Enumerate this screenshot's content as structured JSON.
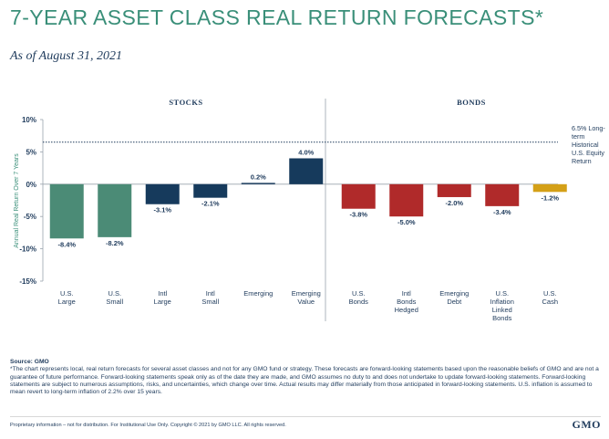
{
  "header": {
    "title": "7-YEAR ASSET CLASS REAL RETURN FORECASTS*",
    "subtitle": "As of August 31, 2021"
  },
  "colors": {
    "title": "#3a8f79",
    "navy": "#1f3b5c",
    "us_equity": "#4b8b76",
    "intl_equity": "#163a5c",
    "bonds": "#b02a2a",
    "cash": "#d4a017"
  },
  "chart_data": {
    "type": "bar",
    "group_labels": [
      "STOCKS",
      "BONDS"
    ],
    "ylabel": "Annual Real Return Over 7 Years",
    "ylim": [
      -15,
      10
    ],
    "yticks": [
      {
        "value": 10,
        "label": "10%"
      },
      {
        "value": 5,
        "label": "5%"
      },
      {
        "value": 0,
        "label": "0%"
      },
      {
        "value": -5,
        "label": "-5%"
      },
      {
        "value": -10,
        "label": "-10%"
      },
      {
        "value": -15,
        "label": "-15%"
      }
    ],
    "reference_line": {
      "value": 6.5,
      "label_lines": [
        "6.5% Long-",
        "term",
        "Historical",
        "U.S. Equity",
        "Return"
      ]
    },
    "bars": [
      {
        "label_lines": [
          "U.S.",
          "Large"
        ],
        "value": -8.4,
        "value_label": "-8.4%",
        "color": "#4b8b76",
        "group": "STOCKS"
      },
      {
        "label_lines": [
          "U.S.",
          "Small"
        ],
        "value": -8.2,
        "value_label": "-8.2%",
        "color": "#4b8b76",
        "group": "STOCKS"
      },
      {
        "label_lines": [
          "Intl",
          "Large"
        ],
        "value": -3.1,
        "value_label": "-3.1%",
        "color": "#163a5c",
        "group": "STOCKS"
      },
      {
        "label_lines": [
          "Intl",
          "Small"
        ],
        "value": -2.1,
        "value_label": "-2.1%",
        "color": "#163a5c",
        "group": "STOCKS"
      },
      {
        "label_lines": [
          "Emerging"
        ],
        "value": 0.2,
        "value_label": "0.2%",
        "color": "#163a5c",
        "group": "STOCKS"
      },
      {
        "label_lines": [
          "Emerging",
          "Value"
        ],
        "value": 4.0,
        "value_label": "4.0%",
        "color": "#163a5c",
        "group": "STOCKS"
      },
      {
        "label_lines": [
          "U.S.",
          "Bonds"
        ],
        "value": -3.8,
        "value_label": "-3.8%",
        "color": "#b02a2a",
        "group": "BONDS"
      },
      {
        "label_lines": [
          "Intl",
          "Bonds",
          "Hedged"
        ],
        "value": -5.0,
        "value_label": "-5.0%",
        "color": "#b02a2a",
        "group": "BONDS"
      },
      {
        "label_lines": [
          "Emerging",
          "Debt"
        ],
        "value": -2.0,
        "value_label": "-2.0%",
        "color": "#b02a2a",
        "group": "BONDS"
      },
      {
        "label_lines": [
          "U.S.",
          "Inflation",
          "Linked",
          "Bonds"
        ],
        "value": -3.4,
        "value_label": "-3.4%",
        "color": "#b02a2a",
        "group": "BONDS"
      },
      {
        "label_lines": [
          "U.S.",
          "Cash"
        ],
        "value": -1.2,
        "value_label": "-1.2%",
        "color": "#d4a017",
        "group": "BONDS"
      }
    ]
  },
  "footer": {
    "source": "Source: GMO",
    "notes": "*The chart represents local, real return forecasts for several asset classes and not for any GMO fund or strategy. These forecasts are forward-looking statements based upon the reasonable beliefs of GMO and are not a guarantee of future performance. Forward-looking statements speak only as of the date they are made, and GMO assumes no duty to and does not undertake to update forward-looking statements. Forward-looking statements are subject to numerous assumptions, risks, and uncertainties, which change over time. Actual results may differ materially from those anticipated in forward-looking statements. U.S. inflation is assumed to mean revert to long-term inflation of 2.2% over 15 years.",
    "proprietary": "Proprietary information – not for distribution. For Institutional Use Only. Copyright © 2021 by GMO LLC. All rights reserved.",
    "logo": "GMO"
  }
}
